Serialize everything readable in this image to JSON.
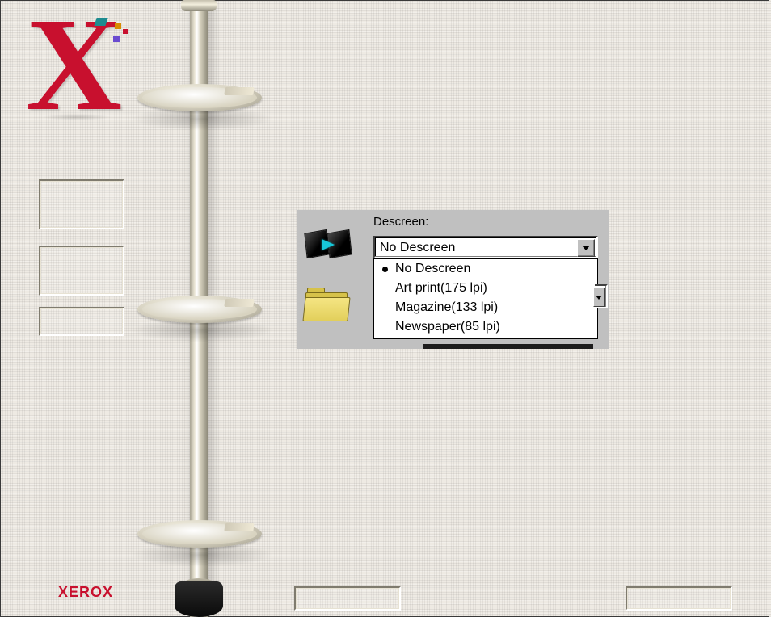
{
  "brand": {
    "footer_text": "XEROX",
    "logo_color": "#c8102e"
  },
  "dialog": {
    "descreen_label": "Descreen:",
    "selected": "No Descreen",
    "options": [
      {
        "label": "No Descreen",
        "selected": true
      },
      {
        "label": "Art print(175 lpi)",
        "selected": false
      },
      {
        "label": "Magazine(133 lpi)",
        "selected": false
      },
      {
        "label": "Newspaper(85 lpi)",
        "selected": false
      }
    ]
  },
  "colors": {
    "panel_bg": "#c0c0c0",
    "page_bg": "#eeeae3",
    "accent_red": "#c8102e",
    "arrow_cyan": "#17c7d8"
  }
}
